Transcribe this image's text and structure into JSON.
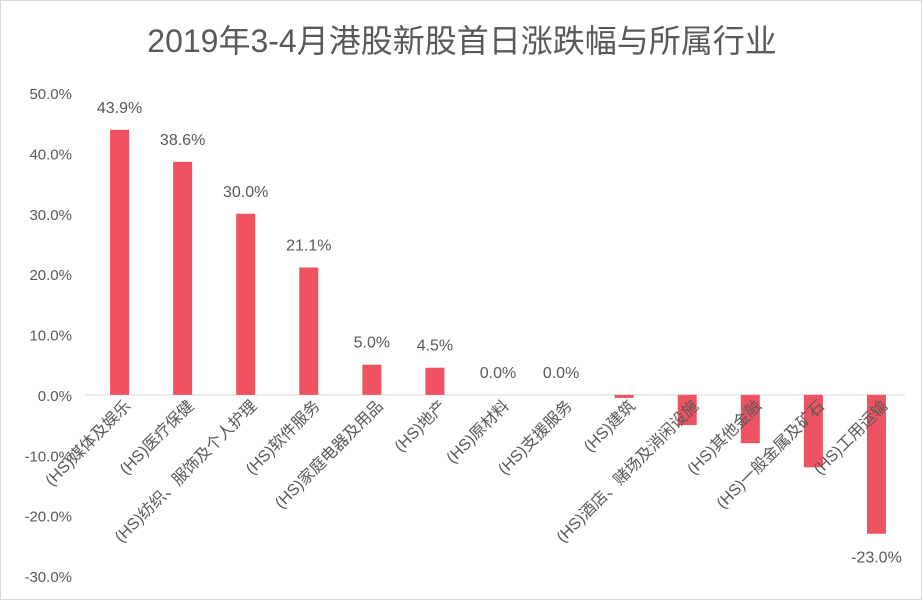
{
  "chart_data": {
    "type": "bar",
    "title": "2019年3-4月港股新股首日涨跌幅与所属行业",
    "xlabel": "",
    "ylabel": "",
    "ylim": [
      -30,
      50
    ],
    "ytick_step": 10,
    "y_tick_labels": [
      "50.0%",
      "40.0%",
      "30.0%",
      "20.0%",
      "10.0%",
      "0.0%",
      "-10.0%",
      "-20.0%",
      "-30.0%"
    ],
    "grid": false,
    "bar_color": "#ef5361",
    "categories": [
      "(HS)媒体及娱乐",
      "(HS)医疗保健",
      "(HS)纺织、服饰及个人护理",
      "(HS)软件服务",
      "(HS)家庭电器及用品",
      "(HS)地产",
      "(HS)原材料",
      "(HS)支援服务",
      "(HS)建筑",
      "(HS)酒店、赌场及消闲设施",
      "(HS)其他金融",
      "(HS)一般金属及矿石",
      "(HS)工用运输"
    ],
    "values": [
      43.9,
      38.6,
      30.0,
      21.1,
      5.0,
      4.5,
      0.0,
      0.0,
      -0.5,
      -5.0,
      -8.0,
      -12.0,
      -23.0
    ],
    "data_labels": [
      "43.9%",
      "38.6%",
      "30.0%",
      "21.1%",
      "5.0%",
      "4.5%",
      "0.0%",
      "0.0%",
      "",
      "",
      "",
      "",
      "-23.0%"
    ]
  }
}
